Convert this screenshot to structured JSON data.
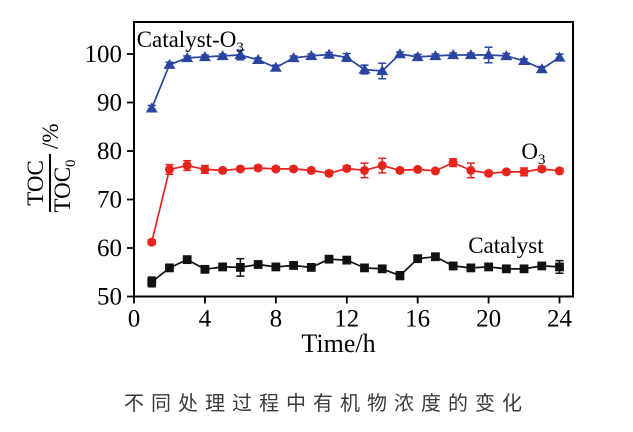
{
  "figure": {
    "caption": "不同处理过程中有机物浓度的变化"
  },
  "chart_data": {
    "type": "line",
    "title": "",
    "xlabel": "Time/h",
    "ylabel": {
      "numerator": "TOC",
      "denominator": "TOC",
      "denominator_sub": "0",
      "suffix": "/%"
    },
    "xlim": [
      0,
      24.76
    ],
    "ylim": [
      50,
      106.6
    ],
    "xticks": [
      0,
      4,
      8,
      12,
      16,
      20,
      24
    ],
    "yticks": [
      50,
      60,
      70,
      80,
      90,
      100
    ],
    "grid": false,
    "legend": "inline-labels",
    "x": [
      1,
      2,
      3,
      4,
      5,
      6,
      7,
      8,
      9,
      10,
      11,
      12,
      13,
      14,
      15,
      16,
      17,
      18,
      19,
      20,
      21,
      22,
      23,
      24
    ],
    "series": [
      {
        "name": "Catalyst-O3",
        "label": "Catalyst-O",
        "label_sub": "3",
        "color": "#2a45a0",
        "marker": "triangle",
        "values": [
          88.8,
          97.8,
          99.2,
          99.4,
          99.6,
          99.8,
          98.8,
          97.2,
          99.2,
          99.6,
          99.9,
          99.3,
          96.8,
          96.5,
          100.0,
          99.4,
          99.6,
          99.8,
          99.8,
          99.8,
          99.6,
          98.6,
          96.9,
          99.3
        ],
        "errors": [
          0.6,
          0.5,
          0.4,
          0.4,
          0.4,
          1.0,
          0.4,
          0.5,
          0.4,
          0.4,
          0.4,
          0.8,
          0.9,
          1.6,
          0.4,
          0.5,
          0.4,
          0.4,
          0.4,
          1.6,
          0.5,
          0.4,
          0.5,
          0.7
        ],
        "label_x": 0.15,
        "label_y": 101.4
      },
      {
        "name": "O3",
        "label": "O",
        "label_sub": "3",
        "color": "#e8231c",
        "marker": "circle",
        "values": [
          61.2,
          76.2,
          77.0,
          76.2,
          76.0,
          76.3,
          76.5,
          76.3,
          76.3,
          76.0,
          75.4,
          76.4,
          76.0,
          77.0,
          76.0,
          76.2,
          75.9,
          77.6,
          76.0,
          75.4,
          75.7,
          75.7,
          76.3,
          75.9
        ],
        "errors": [
          0.5,
          1.0,
          1.0,
          0.8,
          0.4,
          0.4,
          0.4,
          0.4,
          0.4,
          0.4,
          0.5,
          0.5,
          1.5,
          1.5,
          0.4,
          0.4,
          0.4,
          0.8,
          1.5,
          0.4,
          0.4,
          0.8,
          0.5,
          0.5
        ],
        "label_x": 21.85,
        "label_y": 78.4
      },
      {
        "name": "Catalyst",
        "label": "Catalyst",
        "label_sub": "",
        "color": "#111111",
        "marker": "square",
        "values": [
          53.0,
          55.9,
          57.6,
          55.6,
          56.1,
          56.0,
          56.6,
          56.1,
          56.4,
          56.0,
          57.7,
          57.5,
          55.9,
          55.7,
          54.3,
          57.8,
          58.2,
          56.3,
          55.9,
          56.1,
          55.7,
          55.7,
          56.3,
          56.1
        ],
        "errors": [
          1.0,
          0.4,
          0.4,
          0.4,
          0.7,
          1.8,
          0.4,
          0.4,
          0.6,
          0.4,
          0.4,
          0.4,
          0.6,
          0.7,
          0.8,
          0.4,
          0.4,
          0.7,
          0.4,
          0.4,
          0.4,
          0.4,
          0.4,
          1.3
        ],
        "label_x": 18.85,
        "label_y": 59.0
      }
    ]
  },
  "colors": {
    "axis": "#000000",
    "background": "#ffffff",
    "caption_text": "#3a3a3a"
  }
}
